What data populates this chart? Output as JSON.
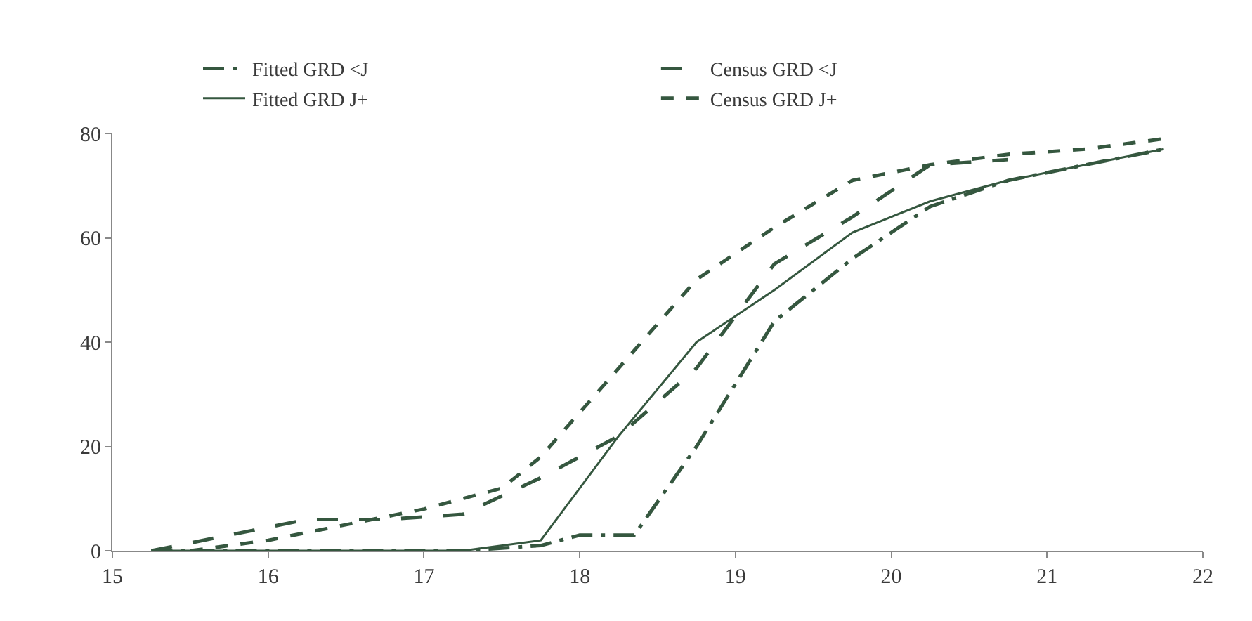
{
  "chart_data": {
    "type": "line",
    "xlim": [
      15,
      22
    ],
    "xticks": [
      15,
      16,
      17,
      18,
      19,
      20,
      21,
      22
    ],
    "ylim": [
      0,
      80
    ],
    "yticks": [
      0,
      20,
      40,
      60,
      80
    ],
    "legend": "top",
    "marker": "none",
    "series": [
      {
        "name": "Fitted GRD <J",
        "color": "#35573f",
        "line_style": "dashdot",
        "x": [
          15.25,
          15.75,
          16.25,
          16.75,
          17.25,
          17.75,
          18.0,
          18.35,
          18.75,
          19.25,
          19.75,
          20.25,
          20.75,
          21.25,
          21.75
        ],
        "values": [
          0,
          0,
          0,
          0,
          0,
          1,
          3,
          3,
          20,
          44,
          56,
          66,
          71,
          74,
          77
        ]
      },
      {
        "name": "Census GRD <J",
        "color": "#35573f",
        "line_style": "longdash",
        "x": [
          15.25,
          15.75,
          16.25,
          16.75,
          17.25,
          17.75,
          18.25,
          18.75,
          19.25,
          19.75,
          20.25,
          20.75
        ],
        "values": [
          0,
          3,
          6,
          6,
          7,
          14,
          22,
          35,
          55,
          64,
          74,
          75
        ]
      },
      {
        "name": "Fitted GRD J+",
        "color": "#35573f",
        "line_style": "solid",
        "x": [
          15.25,
          15.75,
          16.25,
          16.75,
          17.25,
          17.75,
          18.25,
          18.75,
          19.25,
          19.75,
          20.25,
          20.75,
          21.25,
          21.75
        ],
        "values": [
          0,
          0,
          0,
          0,
          0,
          2,
          22,
          40,
          50,
          61,
          67,
          71,
          74,
          77
        ]
      },
      {
        "name": "Census GRD J+",
        "color": "#35573f",
        "line_style": "dash",
        "x": [
          15.5,
          16.0,
          16.5,
          17.0,
          17.5,
          17.75,
          18.25,
          18.75,
          19.25,
          19.75,
          20.25,
          20.75,
          21.25,
          21.75
        ],
        "values": [
          0,
          2,
          5,
          8,
          12,
          18,
          35,
          52,
          62,
          71,
          74,
          76,
          77,
          79
        ]
      }
    ]
  }
}
